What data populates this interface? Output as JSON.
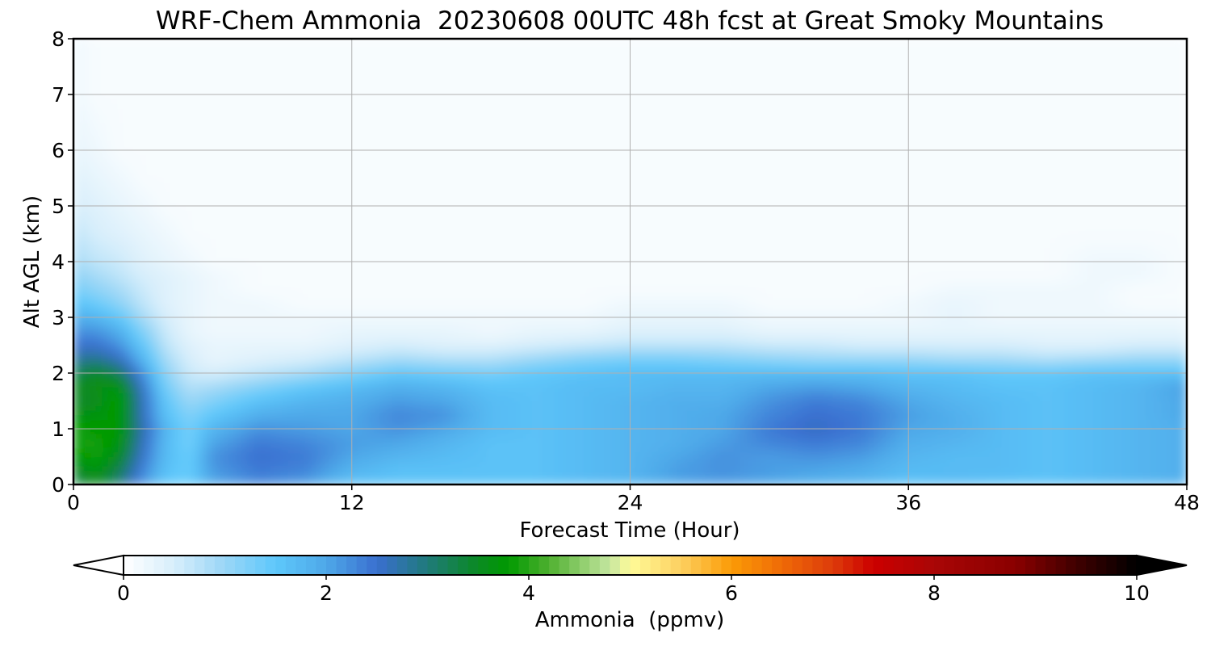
{
  "chart_data": {
    "type": "heatmap",
    "title": "WRF-Chem Ammonia  20230608 00UTC 48h fcst at Great Smoky Mountains",
    "xlabel": "Forecast Time (Hour)",
    "ylabel": "Alt AGL (km)",
    "xlim": [
      0,
      48
    ],
    "ylim": [
      0,
      8
    ],
    "x_ticks": [
      0,
      12,
      24,
      36,
      48
    ],
    "y_ticks": [
      0,
      1,
      2,
      3,
      4,
      5,
      6,
      7,
      8
    ],
    "grid": true,
    "colorbar": {
      "label": "Ammonia  (ppmv)",
      "range": [
        0,
        10
      ],
      "ticks": [
        0,
        2,
        4,
        6,
        8,
        10
      ],
      "extend": "both",
      "orientation": "horizontal",
      "colors": [
        {
          "value": 0.0,
          "color": "#ffffff"
        },
        {
          "value": 0.5,
          "color": "#d7eefb"
        },
        {
          "value": 1.0,
          "color": "#9ad6f6"
        },
        {
          "value": 1.5,
          "color": "#5ec8fb"
        },
        {
          "value": 2.0,
          "color": "#4ea8e8"
        },
        {
          "value": 2.5,
          "color": "#3a6fd0"
        },
        {
          "value": 3.0,
          "color": "#1f7a7a"
        },
        {
          "value": 3.5,
          "color": "#0a8a22"
        },
        {
          "value": 3.8,
          "color": "#019a01"
        },
        {
          "value": 4.2,
          "color": "#4fb030"
        },
        {
          "value": 4.8,
          "color": "#c5e6a0"
        },
        {
          "value": 5.0,
          "color": "#fffb99"
        },
        {
          "value": 5.5,
          "color": "#fdd060"
        },
        {
          "value": 6.0,
          "color": "#fb9b06"
        },
        {
          "value": 6.5,
          "color": "#ef6a07"
        },
        {
          "value": 7.0,
          "color": "#dd3b0a"
        },
        {
          "value": 7.4,
          "color": "#cc0000"
        },
        {
          "value": 8.0,
          "color": "#a90606"
        },
        {
          "value": 8.8,
          "color": "#8a0000"
        },
        {
          "value": 9.4,
          "color": "#400000"
        },
        {
          "value": 10.0,
          "color": "#000000"
        }
      ]
    },
    "x_hours": [
      0,
      1,
      2,
      3,
      4,
      5,
      6,
      8,
      10,
      12,
      14,
      16,
      18,
      20,
      22,
      24,
      26,
      28,
      30,
      32,
      34,
      36,
      38,
      40,
      42,
      44,
      46,
      48
    ],
    "z_levels_km": [
      0,
      0.25,
      0.5,
      0.75,
      1.0,
      1.25,
      1.5,
      1.75,
      2.0,
      2.25,
      2.5,
      2.75,
      3.0,
      3.25,
      3.5,
      3.75,
      4.0,
      4.5,
      5.0,
      5.5,
      6.0,
      7.0,
      8.0
    ],
    "ammonia_ppmv": [
      [
        3.2,
        3.5,
        3.0,
        2.2,
        1.5,
        1.4,
        2.0,
        2.3,
        2.1,
        1.6,
        1.6,
        1.6,
        1.6,
        1.6,
        1.7,
        1.8,
        2.0,
        2.1,
        2.0,
        1.9,
        1.8,
        1.6,
        1.7,
        1.6,
        1.6,
        1.7,
        1.8,
        1.9
      ],
      [
        3.4,
        3.7,
        3.2,
        2.3,
        1.6,
        1.4,
        2.1,
        2.4,
        2.3,
        1.8,
        1.6,
        1.6,
        1.6,
        1.6,
        1.7,
        1.8,
        2.1,
        2.2,
        2.1,
        2.0,
        1.9,
        1.7,
        1.7,
        1.7,
        1.6,
        1.7,
        1.8,
        1.9
      ],
      [
        3.7,
        3.9,
        3.5,
        2.5,
        1.7,
        1.4,
        2.2,
        2.5,
        2.4,
        2.0,
        1.8,
        1.7,
        1.6,
        1.6,
        1.7,
        1.8,
        2.0,
        2.2,
        2.1,
        2.2,
        2.1,
        1.8,
        1.7,
        1.7,
        1.6,
        1.7,
        1.8,
        1.9
      ],
      [
        3.9,
        3.9,
        3.7,
        2.6,
        1.7,
        1.3,
        2.0,
        2.4,
        2.3,
        2.1,
        2.0,
        1.8,
        1.6,
        1.6,
        1.7,
        1.8,
        1.9,
        2.1,
        2.3,
        2.4,
        2.3,
        1.9,
        1.8,
        1.7,
        1.6,
        1.7,
        1.8,
        1.9
      ],
      [
        3.9,
        3.8,
        3.8,
        2.7,
        1.8,
        1.3,
        1.8,
        2.2,
        2.1,
        2.0,
        2.2,
        2.0,
        1.7,
        1.6,
        1.7,
        1.8,
        1.9,
        2.0,
        2.4,
        2.6,
        2.4,
        2.0,
        1.9,
        1.7,
        1.6,
        1.7,
        1.8,
        1.9
      ],
      [
        3.6,
        3.7,
        3.8,
        2.6,
        1.6,
        1.2,
        1.5,
        1.9,
        2.0,
        2.0,
        2.3,
        2.2,
        1.7,
        1.6,
        1.7,
        1.8,
        1.9,
        2.0,
        2.3,
        2.5,
        2.4,
        2.1,
        1.9,
        1.7,
        1.6,
        1.7,
        1.8,
        2.0
      ],
      [
        3.4,
        3.5,
        3.9,
        2.6,
        1.5,
        1.0,
        1.2,
        1.6,
        1.8,
        1.9,
        2.1,
        2.0,
        1.7,
        1.6,
        1.7,
        1.8,
        1.9,
        1.9,
        2.2,
        2.4,
        2.3,
        2.0,
        1.8,
        1.7,
        1.6,
        1.7,
        1.8,
        2.0
      ],
      [
        3.5,
        3.6,
        3.7,
        2.5,
        1.3,
        0.8,
        0.9,
        1.2,
        1.5,
        1.7,
        1.9,
        1.8,
        1.6,
        1.6,
        1.7,
        1.7,
        1.8,
        1.8,
        2.0,
        2.1,
        2.0,
        1.8,
        1.7,
        1.6,
        1.6,
        1.7,
        1.8,
        2.1
      ],
      [
        3.2,
        3.5,
        3.2,
        2.2,
        1.1,
        0.6,
        0.5,
        0.7,
        0.9,
        1.2,
        1.5,
        1.4,
        1.3,
        1.5,
        1.6,
        1.7,
        1.7,
        1.7,
        1.7,
        1.7,
        1.7,
        1.6,
        1.6,
        1.5,
        1.5,
        1.6,
        1.6,
        1.6
      ],
      [
        2.8,
        2.9,
        2.6,
        1.8,
        0.9,
        0.5,
        0.3,
        0.4,
        0.5,
        0.7,
        0.9,
        0.8,
        0.8,
        1.0,
        1.2,
        1.3,
        1.3,
        1.2,
        1.1,
        1.0,
        1.0,
        1.0,
        0.9,
        0.9,
        0.8,
        0.9,
        1.0,
        1.0
      ],
      [
        2.5,
        2.5,
        2.2,
        1.5,
        0.7,
        0.4,
        0.3,
        0.3,
        0.3,
        0.4,
        0.5,
        0.4,
        0.4,
        0.5,
        0.6,
        0.7,
        0.7,
        0.7,
        0.6,
        0.6,
        0.5,
        0.5,
        0.5,
        0.5,
        0.4,
        0.4,
        0.5,
        0.5
      ],
      [
        2.2,
        2.2,
        1.9,
        1.2,
        0.6,
        0.3,
        0.2,
        0.2,
        0.2,
        0.3,
        0.3,
        0.3,
        0.2,
        0.3,
        0.3,
        0.4,
        0.4,
        0.4,
        0.3,
        0.3,
        0.3,
        0.3,
        0.3,
        0.3,
        0.3,
        0.3,
        0.3,
        0.3
      ],
      [
        1.9,
        1.8,
        1.5,
        0.9,
        0.5,
        0.3,
        0.2,
        0.2,
        0.2,
        0.2,
        0.2,
        0.2,
        0.2,
        0.2,
        0.2,
        0.3,
        0.3,
        0.3,
        0.2,
        0.2,
        0.2,
        0.2,
        0.3,
        0.2,
        0.2,
        0.2,
        0.2,
        0.2
      ],
      [
        1.6,
        1.4,
        1.1,
        0.7,
        0.4,
        0.3,
        0.2,
        0.2,
        0.1,
        0.1,
        0.1,
        0.1,
        0.1,
        0.1,
        0.1,
        0.2,
        0.2,
        0.2,
        0.1,
        0.1,
        0.1,
        0.2,
        0.3,
        0.2,
        0.2,
        0.2,
        0.1,
        0.1
      ],
      [
        1.3,
        1.1,
        0.9,
        0.6,
        0.4,
        0.3,
        0.2,
        0.1,
        0.1,
        0.1,
        0.1,
        0.1,
        0.1,
        0.1,
        0.1,
        0.1,
        0.1,
        0.1,
        0.1,
        0.1,
        0.1,
        0.1,
        0.2,
        0.2,
        0.2,
        0.2,
        0.1,
        0.1
      ],
      [
        1.1,
        0.9,
        0.7,
        0.5,
        0.4,
        0.3,
        0.2,
        0.1,
        0.1,
        0.1,
        0.1,
        0.1,
        0.1,
        0.1,
        0.1,
        0.1,
        0.1,
        0.1,
        0.1,
        0.1,
        0.1,
        0.1,
        0.1,
        0.1,
        0.1,
        0.2,
        0.2,
        0.1
      ],
      [
        0.9,
        0.7,
        0.6,
        0.4,
        0.3,
        0.2,
        0.1,
        0.1,
        0.1,
        0.1,
        0.1,
        0.1,
        0.1,
        0.1,
        0.1,
        0.1,
        0.1,
        0.1,
        0.1,
        0.1,
        0.1,
        0.1,
        0.1,
        0.1,
        0.1,
        0.2,
        0.2,
        0.1
      ],
      [
        0.7,
        0.5,
        0.4,
        0.3,
        0.2,
        0.1,
        0.1,
        0.1,
        0.1,
        0.1,
        0.1,
        0.1,
        0.1,
        0.1,
        0.1,
        0.1,
        0.1,
        0.1,
        0.1,
        0.1,
        0.1,
        0.1,
        0.1,
        0.1,
        0.1,
        0.1,
        0.1,
        0.1
      ],
      [
        0.5,
        0.4,
        0.3,
        0.2,
        0.1,
        0.1,
        0.1,
        0.1,
        0.1,
        0.1,
        0.1,
        0.1,
        0.1,
        0.1,
        0.1,
        0.1,
        0.1,
        0.1,
        0.1,
        0.1,
        0.1,
        0.1,
        0.1,
        0.1,
        0.1,
        0.1,
        0.1,
        0.1
      ],
      [
        0.4,
        0.3,
        0.2,
        0.1,
        0.1,
        0.1,
        0.1,
        0.1,
        0.1,
        0.1,
        0.1,
        0.1,
        0.1,
        0.1,
        0.1,
        0.1,
        0.1,
        0.1,
        0.1,
        0.1,
        0.1,
        0.1,
        0.1,
        0.1,
        0.1,
        0.1,
        0.1,
        0.1
      ],
      [
        0.3,
        0.2,
        0.1,
        0.1,
        0.1,
        0.1,
        0.1,
        0.1,
        0.1,
        0.1,
        0.1,
        0.1,
        0.1,
        0.1,
        0.1,
        0.1,
        0.1,
        0.1,
        0.1,
        0.1,
        0.1,
        0.1,
        0.1,
        0.1,
        0.1,
        0.1,
        0.1,
        0.1
      ],
      [
        0.2,
        0.1,
        0.1,
        0.1,
        0.1,
        0.1,
        0.1,
        0.1,
        0.1,
        0.1,
        0.1,
        0.1,
        0.1,
        0.1,
        0.1,
        0.1,
        0.1,
        0.1,
        0.1,
        0.1,
        0.1,
        0.1,
        0.1,
        0.1,
        0.1,
        0.1,
        0.1,
        0.1
      ],
      [
        0.2,
        0.1,
        0.1,
        0.1,
        0.1,
        0.1,
        0.1,
        0.1,
        0.1,
        0.1,
        0.1,
        0.1,
        0.1,
        0.1,
        0.1,
        0.1,
        0.1,
        0.1,
        0.1,
        0.1,
        0.1,
        0.1,
        0.1,
        0.1,
        0.1,
        0.1,
        0.1,
        0.1
      ]
    ]
  }
}
